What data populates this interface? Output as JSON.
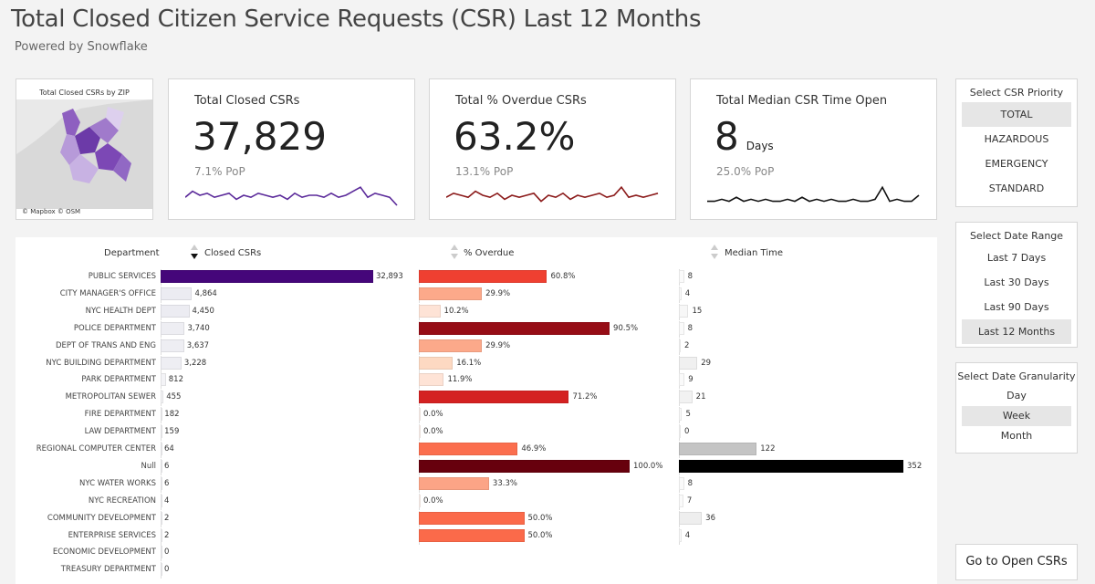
{
  "header": {
    "title": "Total Closed Citizen Service Requests (CSR) Last 12 Months",
    "subtitle": "Powered by Snowflake"
  },
  "map": {
    "title": "Total Closed CSRs by ZIP",
    "credit": "© Mapbox © OSM"
  },
  "kpis": [
    {
      "label": "Total Closed CSRs",
      "value": "37,829",
      "unit": "",
      "pop": "7.1% PoP",
      "color": "#5b2a9a"
    },
    {
      "label": "Total % Overdue CSRs",
      "value": "63.2%",
      "unit": "",
      "pop": "13.1% PoP",
      "color": "#8b1a1a"
    },
    {
      "label": "Total Median CSR Time Open",
      "value": "8",
      "unit": "Days",
      "pop": "25.0% PoP",
      "color": "#111111"
    }
  ],
  "filters": {
    "priority": {
      "title": "Select CSR Priority",
      "options": [
        "TOTAL",
        "HAZARDOUS",
        "EMERGENCY",
        "STANDARD"
      ],
      "selected": "TOTAL"
    },
    "date_range": {
      "title": "Select Date Range",
      "options": [
        "Last 7 Days",
        "Last 30 Days",
        "Last 90 Days",
        "Last 12 Months"
      ],
      "selected": "Last 12 Months"
    },
    "granularity": {
      "title": "Select Date Granularity",
      "options": [
        "Day",
        "Week",
        "Month"
      ],
      "selected": "Week"
    }
  },
  "goto_button": "Go to Open CSRs",
  "table": {
    "headers": {
      "department": "Department",
      "closed": "Closed CSRs",
      "overdue": "% Overdue",
      "median": "Median Time"
    },
    "sort": {
      "column": "Closed CSRs",
      "direction": "descending"
    },
    "rows": [
      {
        "dept": "PUBLIC SERVICES",
        "closed": 32893,
        "closed_label": "32,893",
        "closed_color": "#45067a",
        "overdue": 60.8,
        "overdue_label": "60.8%",
        "overdue_color": "#ef4031",
        "median": 8,
        "median_label": "8",
        "median_color": "#fafafa"
      },
      {
        "dept": "CITY MANAGER'S OFFICE",
        "closed": 4864,
        "closed_label": "4,864",
        "closed_color": "#ececf2",
        "overdue": 29.9,
        "overdue_label": "29.9%",
        "overdue_color": "#fca98a",
        "median": 4,
        "median_label": "4",
        "median_color": "#fafafa"
      },
      {
        "dept": "NYC HEALTH DEPT",
        "closed": 4450,
        "closed_label": "4,450",
        "closed_color": "#ececf2",
        "overdue": 10.2,
        "overdue_label": "10.2%",
        "overdue_color": "#fee3d6",
        "median": 15,
        "median_label": "15",
        "median_color": "#f7f7f7"
      },
      {
        "dept": "POLICE DEPARTMENT",
        "closed": 3740,
        "closed_label": "3,740",
        "closed_color": "#eeeef3",
        "overdue": 90.5,
        "overdue_label": "90.5%",
        "overdue_color": "#960d16",
        "median": 8,
        "median_label": "8",
        "median_color": "#fafafa"
      },
      {
        "dept": "DEPT OF TRANS AND ENG",
        "closed": 3637,
        "closed_label": "3,637",
        "closed_color": "#eeeef3",
        "overdue": 29.9,
        "overdue_label": "29.9%",
        "overdue_color": "#fca98a",
        "median": 2,
        "median_label": "2",
        "median_color": "#fafafa"
      },
      {
        "dept": "NYC BUILDING DEPARTMENT",
        "closed": 3228,
        "closed_label": "3,228",
        "closed_color": "#eeeef3",
        "overdue": 16.1,
        "overdue_label": "16.1%",
        "overdue_color": "#fdd9c2",
        "median": 29,
        "median_label": "29",
        "median_color": "#f0f0f0"
      },
      {
        "dept": "PARK DEPARTMENT",
        "closed": 812,
        "closed_label": "812",
        "closed_color": "#f3f3f6",
        "overdue": 11.9,
        "overdue_label": "11.9%",
        "overdue_color": "#fee3d6",
        "median": 9,
        "median_label": "9",
        "median_color": "#fafafa"
      },
      {
        "dept": "METROPOLITAN SEWER",
        "closed": 455,
        "closed_label": "455",
        "closed_color": "#f5f5f7",
        "overdue": 71.2,
        "overdue_label": "71.2%",
        "overdue_color": "#d42121",
        "median": 21,
        "median_label": "21",
        "median_color": "#f2f2f2"
      },
      {
        "dept": "FIRE DEPARTMENT",
        "closed": 182,
        "closed_label": "182",
        "closed_color": "#f5f5f7",
        "overdue": 0,
        "overdue_label": "0.0%",
        "overdue_color": "#fff5f0",
        "median": 5,
        "median_label": "5",
        "median_color": "#fafafa"
      },
      {
        "dept": "LAW DEPARTMENT",
        "closed": 159,
        "closed_label": "159",
        "closed_color": "#f5f5f7",
        "overdue": 0,
        "overdue_label": "0.0%",
        "overdue_color": "#fff5f0",
        "median": 0,
        "median_label": "0",
        "median_color": "#fafafa"
      },
      {
        "dept": "REGIONAL COMPUTER CENTER",
        "closed": 64,
        "closed_label": "64",
        "closed_color": "#f5f5f7",
        "overdue": 46.9,
        "overdue_label": "46.9%",
        "overdue_color": "#fb6e4e",
        "median": 122,
        "median_label": "122",
        "median_color": "#c4c4c4"
      },
      {
        "dept": "Null",
        "closed": 6,
        "closed_label": "6",
        "closed_color": "#f5f5f7",
        "overdue": 100,
        "overdue_label": "100.0%",
        "overdue_color": "#67000d",
        "median": 352,
        "median_label": "352",
        "median_color": "#000000"
      },
      {
        "dept": "NYC WATER WORKS",
        "closed": 6,
        "closed_label": "6",
        "closed_color": "#f5f5f7",
        "overdue": 33.3,
        "overdue_label": "33.3%",
        "overdue_color": "#fca486",
        "median": 8,
        "median_label": "8",
        "median_color": "#fafafa"
      },
      {
        "dept": "NYC RECREATION",
        "closed": 4,
        "closed_label": "4",
        "closed_color": "#f5f5f7",
        "overdue": 0,
        "overdue_label": "0.0%",
        "overdue_color": "#fff5f0",
        "median": 7,
        "median_label": "7",
        "median_color": "#fafafa"
      },
      {
        "dept": "COMMUNITY DEVELOPMENT",
        "closed": 2,
        "closed_label": "2",
        "closed_color": "#f5f5f7",
        "overdue": 50,
        "overdue_label": "50.0%",
        "overdue_color": "#fb6a4a",
        "median": 36,
        "median_label": "36",
        "median_color": "#eeeeee"
      },
      {
        "dept": "ENTERPRISE SERVICES",
        "closed": 2,
        "closed_label": "2",
        "closed_color": "#f5f5f7",
        "overdue": 50,
        "overdue_label": "50.0%",
        "overdue_color": "#fb6a4a",
        "median": 4,
        "median_label": "4",
        "median_color": "#fafafa"
      },
      {
        "dept": "ECONOMIC DEVELOPMENT",
        "closed": 0,
        "closed_label": "0",
        "closed_color": "#f5f5f7"
      },
      {
        "dept": "TREASURY DEPARTMENT",
        "closed": 0,
        "closed_label": "0",
        "closed_color": "#f5f5f7"
      }
    ]
  }
}
